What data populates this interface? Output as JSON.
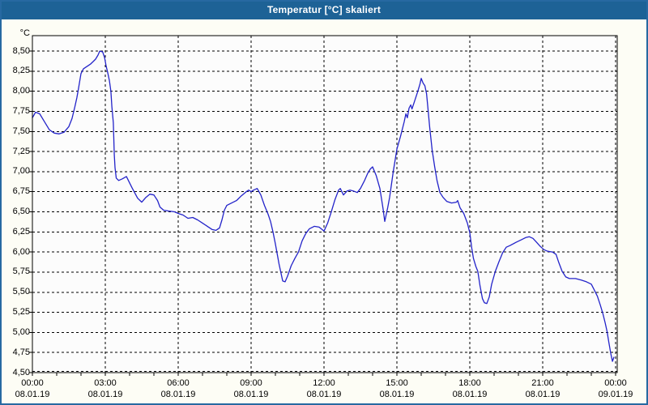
{
  "window": {
    "title": "Temperatur [°C] skaliert"
  },
  "colors": {
    "titlebar": "#1D6296",
    "window_border": "#2769A1",
    "background": "#FDFDF5",
    "plot_background": "#FCFCFC",
    "grid": "#000000",
    "frame": "#000000",
    "line": "#2323C9",
    "text": "#000000"
  },
  "chart_data": {
    "type": "line",
    "title": "Temperatur [°C] skaliert",
    "xlabel": "",
    "ylabel": "°C",
    "grid": true,
    "legend": "none",
    "ylim": [
      4.5,
      8.692
    ],
    "xlim_hours": [
      0,
      24.07
    ],
    "y_ticks": [
      {
        "value": 8.5,
        "label": "8,50"
      },
      {
        "value": 8.25,
        "label": "8,25"
      },
      {
        "value": 8.0,
        "label": "8,00"
      },
      {
        "value": 7.75,
        "label": "7,75"
      },
      {
        "value": 7.5,
        "label": "7,50"
      },
      {
        "value": 7.25,
        "label": "7,25"
      },
      {
        "value": 7.0,
        "label": "7,00"
      },
      {
        "value": 6.75,
        "label": "6,75"
      },
      {
        "value": 6.5,
        "label": "6,50"
      },
      {
        "value": 6.25,
        "label": "6,25"
      },
      {
        "value": 6.0,
        "label": "6,00"
      },
      {
        "value": 5.75,
        "label": "5,75"
      },
      {
        "value": 5.5,
        "label": "5,50"
      },
      {
        "value": 5.25,
        "label": "5,25"
      },
      {
        "value": 5.0,
        "label": "5,00"
      },
      {
        "value": 4.75,
        "label": "4,75"
      },
      {
        "value": 4.5,
        "label": "4,50"
      }
    ],
    "x_ticks": [
      {
        "hour": 0,
        "time": "00:00",
        "date": "08.01.19"
      },
      {
        "hour": 3,
        "time": "03:00",
        "date": "08.01.19"
      },
      {
        "hour": 6,
        "time": "06:00",
        "date": "08.01.19"
      },
      {
        "hour": 9,
        "time": "09:00",
        "date": "08.01.19"
      },
      {
        "hour": 12,
        "time": "12:00",
        "date": "08.01.19"
      },
      {
        "hour": 15,
        "time": "15:00",
        "date": "08.01.19"
      },
      {
        "hour": 18,
        "time": "18:00",
        "date": "08.01.19"
      },
      {
        "hour": 21,
        "time": "21:00",
        "date": "08.01.19"
      },
      {
        "hour": 24,
        "time": "00:00",
        "date": "09.01.19"
      }
    ],
    "minor_x_tick_every_hours": 1,
    "series": [
      {
        "name": "Temperatur",
        "color": "#2323C9",
        "points": [
          [
            0.0,
            7.67
          ],
          [
            0.13,
            7.74
          ],
          [
            0.3,
            7.72
          ],
          [
            0.5,
            7.62
          ],
          [
            0.7,
            7.52
          ],
          [
            0.9,
            7.48
          ],
          [
            1.1,
            7.47
          ],
          [
            1.3,
            7.49
          ],
          [
            1.5,
            7.56
          ],
          [
            1.63,
            7.66
          ],
          [
            1.75,
            7.81
          ],
          [
            1.83,
            7.92
          ],
          [
            1.9,
            8.04
          ],
          [
            2.0,
            8.22
          ],
          [
            2.1,
            8.28
          ],
          [
            2.25,
            8.31
          ],
          [
            2.4,
            8.34
          ],
          [
            2.5,
            8.37
          ],
          [
            2.6,
            8.4
          ],
          [
            2.7,
            8.45
          ],
          [
            2.77,
            8.5
          ],
          [
            2.89,
            8.49
          ],
          [
            2.97,
            8.42
          ],
          [
            3.03,
            8.32
          ],
          [
            3.1,
            8.23
          ],
          [
            3.17,
            8.13
          ],
          [
            3.23,
            8.0
          ],
          [
            3.27,
            7.81
          ],
          [
            3.33,
            7.61
          ],
          [
            3.37,
            7.21
          ],
          [
            3.4,
            7.05
          ],
          [
            3.45,
            6.92
          ],
          [
            3.55,
            6.89
          ],
          [
            3.7,
            6.91
          ],
          [
            3.87,
            6.94
          ],
          [
            4.0,
            6.86
          ],
          [
            4.1,
            6.8
          ],
          [
            4.33,
            6.67
          ],
          [
            4.5,
            6.62
          ],
          [
            4.67,
            6.68
          ],
          [
            4.83,
            6.72
          ],
          [
            5.0,
            6.71
          ],
          [
            5.15,
            6.64
          ],
          [
            5.25,
            6.56
          ],
          [
            5.4,
            6.52
          ],
          [
            5.6,
            6.51
          ],
          [
            5.85,
            6.5
          ],
          [
            6.0,
            6.48
          ],
          [
            6.2,
            6.46
          ],
          [
            6.4,
            6.42
          ],
          [
            6.6,
            6.43
          ],
          [
            6.8,
            6.4
          ],
          [
            7.0,
            6.36
          ],
          [
            7.2,
            6.32
          ],
          [
            7.4,
            6.28
          ],
          [
            7.55,
            6.27
          ],
          [
            7.7,
            6.3
          ],
          [
            7.8,
            6.4
          ],
          [
            7.9,
            6.52
          ],
          [
            8.0,
            6.58
          ],
          [
            8.2,
            6.61
          ],
          [
            8.4,
            6.64
          ],
          [
            8.6,
            6.7
          ],
          [
            8.8,
            6.75
          ],
          [
            8.9,
            6.77
          ],
          [
            9.0,
            6.75
          ],
          [
            9.1,
            6.77
          ],
          [
            9.25,
            6.79
          ],
          [
            9.4,
            6.71
          ],
          [
            9.55,
            6.58
          ],
          [
            9.7,
            6.47
          ],
          [
            9.8,
            6.38
          ],
          [
            9.9,
            6.25
          ],
          [
            10.0,
            6.1
          ],
          [
            10.15,
            5.85
          ],
          [
            10.3,
            5.64
          ],
          [
            10.4,
            5.63
          ],
          [
            10.5,
            5.7
          ],
          [
            10.65,
            5.83
          ],
          [
            10.8,
            5.92
          ],
          [
            10.95,
            6.0
          ],
          [
            11.1,
            6.14
          ],
          [
            11.25,
            6.23
          ],
          [
            11.4,
            6.29
          ],
          [
            11.6,
            6.32
          ],
          [
            11.8,
            6.31
          ],
          [
            12.0,
            6.26
          ],
          [
            12.15,
            6.36
          ],
          [
            12.3,
            6.5
          ],
          [
            12.45,
            6.65
          ],
          [
            12.6,
            6.77
          ],
          [
            12.67,
            6.79
          ],
          [
            12.8,
            6.71
          ],
          [
            12.95,
            6.76
          ],
          [
            13.07,
            6.77
          ],
          [
            13.2,
            6.76
          ],
          [
            13.37,
            6.74
          ],
          [
            13.5,
            6.79
          ],
          [
            13.67,
            6.89
          ],
          [
            13.8,
            6.98
          ],
          [
            13.9,
            7.03
          ],
          [
            14.0,
            7.06
          ],
          [
            14.15,
            6.95
          ],
          [
            14.3,
            6.79
          ],
          [
            14.43,
            6.54
          ],
          [
            14.5,
            6.38
          ],
          [
            14.62,
            6.55
          ],
          [
            14.7,
            6.68
          ],
          [
            14.85,
            7.0
          ],
          [
            15.0,
            7.28
          ],
          [
            15.15,
            7.44
          ],
          [
            15.3,
            7.62
          ],
          [
            15.37,
            7.72
          ],
          [
            15.43,
            7.67
          ],
          [
            15.5,
            7.79
          ],
          [
            15.57,
            7.83
          ],
          [
            15.62,
            7.78
          ],
          [
            15.72,
            7.87
          ],
          [
            15.85,
            7.99
          ],
          [
            15.95,
            8.09
          ],
          [
            16.0,
            8.16
          ],
          [
            16.08,
            8.1
          ],
          [
            16.15,
            8.07
          ],
          [
            16.22,
            7.97
          ],
          [
            16.28,
            7.78
          ],
          [
            16.35,
            7.55
          ],
          [
            16.45,
            7.27
          ],
          [
            16.55,
            7.07
          ],
          [
            16.65,
            6.89
          ],
          [
            16.77,
            6.74
          ],
          [
            16.9,
            6.68
          ],
          [
            17.05,
            6.63
          ],
          [
            17.25,
            6.61
          ],
          [
            17.45,
            6.62
          ],
          [
            17.5,
            6.64
          ],
          [
            17.6,
            6.55
          ],
          [
            17.75,
            6.48
          ],
          [
            17.9,
            6.36
          ],
          [
            18.0,
            6.24
          ],
          [
            18.08,
            6.05
          ],
          [
            18.15,
            5.92
          ],
          [
            18.25,
            5.82
          ],
          [
            18.33,
            5.76
          ],
          [
            18.42,
            5.58
          ],
          [
            18.52,
            5.42
          ],
          [
            18.6,
            5.37
          ],
          [
            18.7,
            5.36
          ],
          [
            18.8,
            5.44
          ],
          [
            18.9,
            5.6
          ],
          [
            19.05,
            5.76
          ],
          [
            19.2,
            5.88
          ],
          [
            19.35,
            5.99
          ],
          [
            19.5,
            6.06
          ],
          [
            19.65,
            6.08
          ],
          [
            19.9,
            6.12
          ],
          [
            20.1,
            6.15
          ],
          [
            20.3,
            6.18
          ],
          [
            20.45,
            6.19
          ],
          [
            20.6,
            6.17
          ],
          [
            20.75,
            6.12
          ],
          [
            20.9,
            6.07
          ],
          [
            21.05,
            6.03
          ],
          [
            21.2,
            6.01
          ],
          [
            21.4,
            6.0
          ],
          [
            21.55,
            5.97
          ],
          [
            21.65,
            5.88
          ],
          [
            21.8,
            5.76
          ],
          [
            21.95,
            5.69
          ],
          [
            22.1,
            5.67
          ],
          [
            22.35,
            5.67
          ],
          [
            22.6,
            5.65
          ],
          [
            22.8,
            5.63
          ],
          [
            23.0,
            5.6
          ],
          [
            23.12,
            5.53
          ],
          [
            23.25,
            5.45
          ],
          [
            23.37,
            5.34
          ],
          [
            23.48,
            5.23
          ],
          [
            23.57,
            5.12
          ],
          [
            23.65,
            5.01
          ],
          [
            23.72,
            4.88
          ],
          [
            23.8,
            4.74
          ],
          [
            23.87,
            4.64
          ],
          [
            23.93,
            4.69
          ]
        ]
      }
    ]
  }
}
